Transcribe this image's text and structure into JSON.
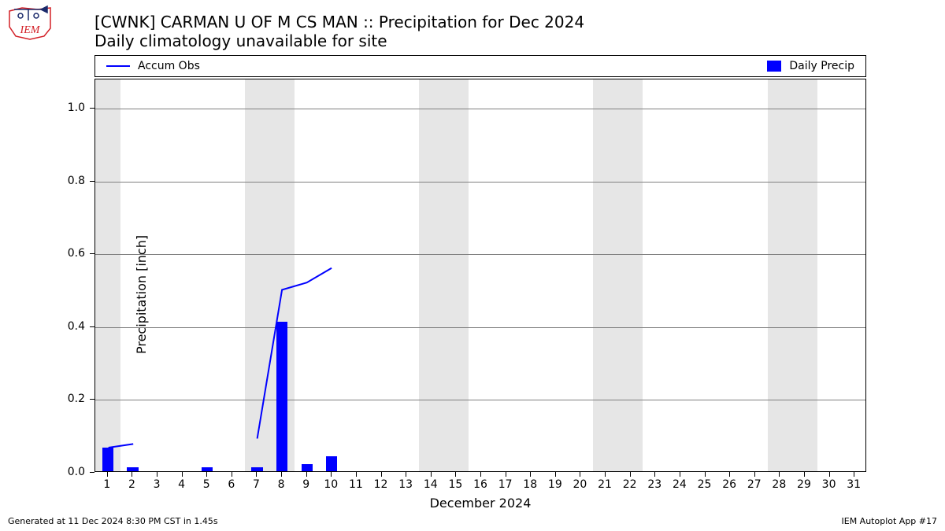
{
  "title": {
    "line1": "[CWNK] CARMAN U OF M CS  MAN :: Precipitation for Dec 2024",
    "line2": "Daily climatology unavailable for site",
    "fontsize": 20
  },
  "legend": {
    "accum_label": "Accum Obs",
    "daily_label": "Daily Precip",
    "line_color": "#0000ff",
    "bar_color": "#0000ff"
  },
  "chart": {
    "type": "bar+line",
    "background_color": "#ffffff",
    "weekend_band_color": "#e6e6e6",
    "grid_color": "#808080",
    "border_color": "#000000",
    "ylabel": "Precipitation [inch]",
    "xlabel": "December 2024",
    "label_fontsize": 16,
    "tick_fontsize": 14,
    "ylim": [
      0,
      1.08
    ],
    "yticks": [
      0.0,
      0.2,
      0.4,
      0.6,
      0.8,
      1.0
    ],
    "xlim": [
      0.5,
      31.5
    ],
    "days": [
      1,
      2,
      3,
      4,
      5,
      6,
      7,
      8,
      9,
      10,
      11,
      12,
      13,
      14,
      15,
      16,
      17,
      18,
      19,
      20,
      21,
      22,
      23,
      24,
      25,
      26,
      27,
      28,
      29,
      30,
      31
    ],
    "weekend_days": [
      1,
      7,
      8,
      14,
      15,
      21,
      22,
      28,
      29
    ],
    "bar_values": {
      "1": 0.065,
      "2": 0.01,
      "5": 0.01,
      "7": 0.01,
      "8": 0.41,
      "9": 0.02,
      "10": 0.04
    },
    "bar_color": "#0000ff",
    "bar_width_days": 0.45,
    "accum_points": [
      {
        "x": 1,
        "y": 0.065
      },
      {
        "x": 2,
        "y": 0.075
      },
      {
        "x": 7,
        "y": 0.09
      },
      {
        "x": 8,
        "y": 0.5
      },
      {
        "x": 9,
        "y": 0.52
      },
      {
        "x": 10,
        "y": 0.56
      }
    ],
    "line_color": "#0000ff",
    "line_width": 2
  },
  "footer": {
    "left": "Generated at 11 Dec 2024 8:30 PM CST in 1.45s",
    "right": "IEM Autoplot App #17",
    "fontsize": 11
  },
  "logo": {
    "border_color": "#d32027",
    "accent_color": "#1b2a6b",
    "text": "IEM"
  }
}
